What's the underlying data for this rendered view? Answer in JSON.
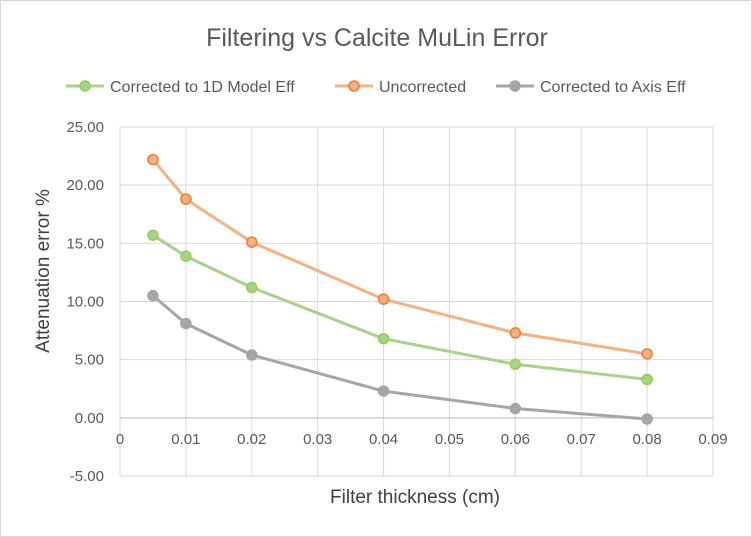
{
  "chart_data": {
    "type": "line",
    "title": "Filtering vs Calcite MuLin Error",
    "xlabel": "Filter thickness (cm)",
    "ylabel": "Attenuation error %",
    "xlim": [
      0,
      0.09
    ],
    "ylim": [
      -5,
      25
    ],
    "x_ticks": [
      "0",
      "0.01",
      "0.02",
      "0.03",
      "0.04",
      "0.05",
      "0.06",
      "0.07",
      "0.08",
      "0.09"
    ],
    "y_ticks": [
      "25.00",
      "20.00",
      "15.00",
      "10.00",
      "5.00",
      "0.00",
      "-5.00"
    ],
    "grid": true,
    "legend_position": "top",
    "x": [
      0.005,
      0.01,
      0.02,
      0.04,
      0.06,
      0.08
    ],
    "series": [
      {
        "name": "Corrected to 1D Model Eff",
        "color": "#a9d18e",
        "marker_color": "#92d050",
        "values": [
          15.7,
          13.9,
          11.2,
          6.8,
          4.6,
          3.3
        ]
      },
      {
        "name": "Uncorrected",
        "color": "#f4b183",
        "marker_color": "#ed7d31",
        "values": [
          22.2,
          18.8,
          15.1,
          10.2,
          7.3,
          5.5
        ]
      },
      {
        "name": "Corrected to Axis Eff",
        "color": "#a6a6a6",
        "marker_color": "#a6a6a6",
        "values": [
          10.5,
          8.1,
          5.4,
          2.3,
          0.8,
          -0.1
        ]
      }
    ]
  }
}
